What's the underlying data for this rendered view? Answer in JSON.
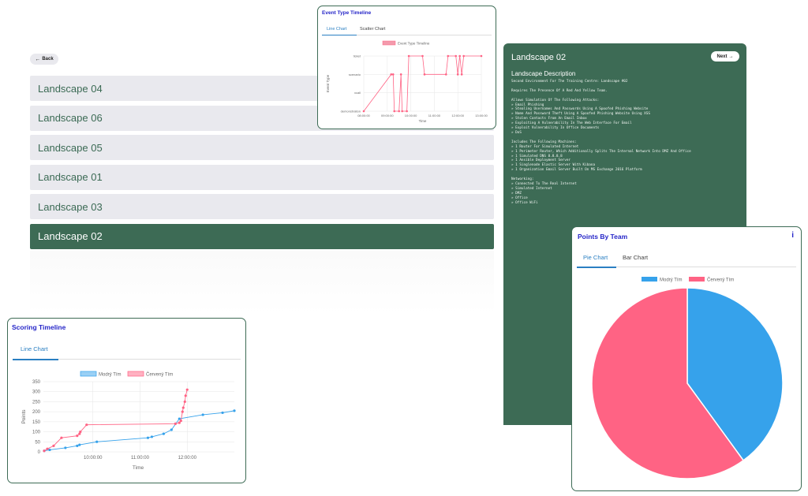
{
  "nav": {
    "back_label": "Back"
  },
  "landscapes": [
    {
      "name": "Landscape 04",
      "active": false
    },
    {
      "name": "Landscape 06",
      "active": false
    },
    {
      "name": "Landscape 05",
      "active": false
    },
    {
      "name": "Landscape 01",
      "active": false
    },
    {
      "name": "Landscape 03",
      "active": false
    },
    {
      "name": "Landscape 02",
      "active": true
    }
  ],
  "detail": {
    "title": "Landscape 02",
    "next_label": "Next",
    "subtitle": "Landscape Description",
    "description": "Second Environment For The Training Centre: Landscape #02\n\nRequires The Presence Of A Red And Yellow Team.\n\nAllows Simulation Of The Following Attacks:\n» Email Phishing\n» Stealing Usernames And Passwords Using A Spoofed Phishing Website\n» Name And Password Theft Using A Spoofed Phishing Website Using XSS\n» Stolen Contacts From An Email Inbox\n» Exploiting A Vulnerability In The Web Interface For Email\n» Exploit Vulnerability In Office Documents\n» DoS\n\nIncludes The Following Machines:\n» 1 Router For Simulated Internet\n» 1 Perimeter Router, Which Additionally Splits The Internal Network Into DMZ And Office\n» 1 Simulated DNS 8.8.8.8\n» 1 Ansible Deployment Server\n» 1 Singlenode Elastic Server With Kibana\n» 1 Organization Email Server Built On MS Exchange 2016 Platform\n\nNetworking:\n» Connected To The Real Internet\n» Simulated Internet\n» DMZ\n» Office\n» Office WiFi"
  },
  "event_card": {
    "title": "Event Type Timeline",
    "tabs": [
      "Line Chart",
      "Scatter Chart"
    ]
  },
  "points_card": {
    "title": "Points By Team",
    "info_icon": "i",
    "tabs": [
      "Pie Chart",
      "Bar Chart"
    ]
  },
  "scoring_card": {
    "title": "Scoring Timeline",
    "tabs": [
      "Line Chart"
    ]
  },
  "colors": {
    "accent": "#3d6b55",
    "blue": "#36a2eb",
    "red": "#ff6384",
    "title_blue": "#2525c8"
  },
  "chart_data": [
    {
      "id": "event-type-timeline",
      "type": "line",
      "legend": [
        "Event Type Timeline"
      ],
      "xlabel": "Time",
      "ylabel": "Event Type",
      "x_ticks": [
        "08:00:00",
        "09:00:00",
        "10:00:00",
        "11:00:00",
        "12:00:00",
        "13:00:00"
      ],
      "categories": [
        "demonstration",
        "xcall",
        "scenario",
        "ticket"
      ],
      "series": [
        {
          "name": "Event Type Timeline",
          "points": [
            [
              "08:00",
              "demonstration"
            ],
            [
              "09:10",
              "scenario"
            ],
            [
              "09:15",
              "scenario"
            ],
            [
              "09:18",
              "demonstration"
            ],
            [
              "09:30",
              "demonstration"
            ],
            [
              "09:35",
              "scenario"
            ],
            [
              "09:38",
              "demonstration"
            ],
            [
              "09:50",
              "demonstration"
            ],
            [
              "09:55",
              "ticket"
            ],
            [
              "10:30",
              "ticket"
            ],
            [
              "10:35",
              "scenario"
            ],
            [
              "11:30",
              "scenario"
            ],
            [
              "11:35",
              "ticket"
            ],
            [
              "11:55",
              "ticket"
            ],
            [
              "12:00",
              "scenario"
            ],
            [
              "12:05",
              "ticket"
            ],
            [
              "12:10",
              "scenario"
            ],
            [
              "12:15",
              "ticket"
            ],
            [
              "13:00",
              "ticket"
            ]
          ]
        }
      ]
    },
    {
      "id": "points-by-team",
      "type": "pie",
      "legend": [
        "Modrý Tím",
        "Červený Tím"
      ],
      "values": [
        40,
        60
      ]
    },
    {
      "id": "scoring-timeline",
      "type": "line",
      "xlabel": "Time",
      "ylabel": "Points",
      "ylim": [
        0,
        350
      ],
      "y_ticks": [
        0,
        50,
        100,
        150,
        200,
        250,
        300,
        350
      ],
      "x_ticks": [
        "10:00:00",
        "11:00:00",
        "12:00:00"
      ],
      "series": [
        {
          "name": "Modrý Tím",
          "points": [
            [
              "08:58",
              5
            ],
            [
              "09:05",
              10
            ],
            [
              "09:25",
              20
            ],
            [
              "09:40",
              30
            ],
            [
              "09:43",
              35
            ],
            [
              "10:05",
              50
            ],
            [
              "11:10",
              70
            ],
            [
              "11:15",
              75
            ],
            [
              "11:30",
              90
            ],
            [
              "11:40",
              110
            ],
            [
              "11:50",
              165
            ],
            [
              "12:20",
              185
            ],
            [
              "12:45",
              195
            ],
            [
              "13:00",
              205
            ]
          ]
        },
        {
          "name": "Červený Tím",
          "points": [
            [
              "08:58",
              5
            ],
            [
              "09:02",
              15
            ],
            [
              "09:10",
              30
            ],
            [
              "09:20",
              70
            ],
            [
              "09:40",
              80
            ],
            [
              "09:43",
              90
            ],
            [
              "09:44",
              100
            ],
            [
              "09:52",
              135
            ],
            [
              "11:45",
              140
            ],
            [
              "11:50",
              145
            ],
            [
              "11:52",
              155
            ],
            [
              "11:54",
              200
            ],
            [
              "11:55",
              220
            ],
            [
              "11:57",
              250
            ],
            [
              "11:58",
              280
            ],
            [
              "12:00",
              310
            ]
          ]
        }
      ]
    }
  ]
}
